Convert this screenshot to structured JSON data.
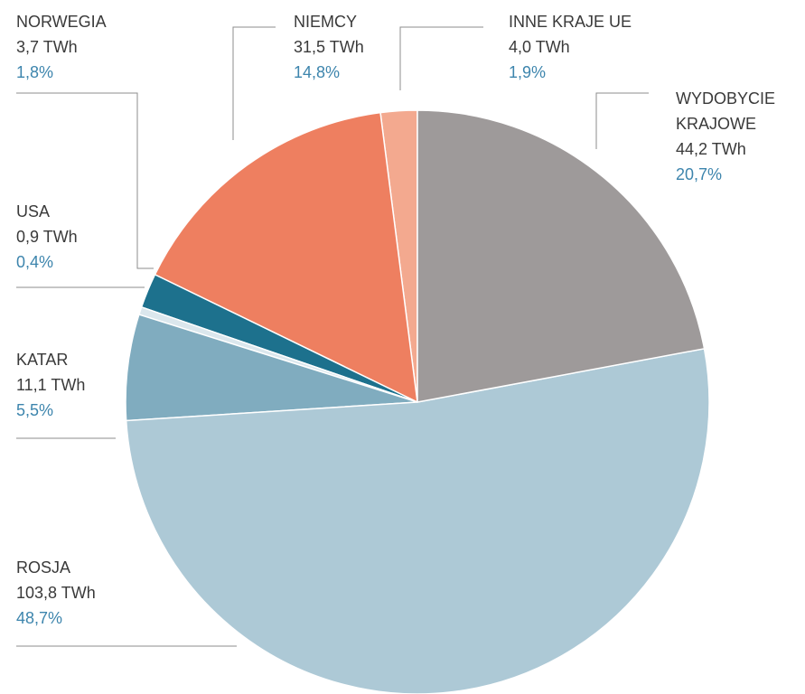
{
  "chart_data": {
    "type": "pie",
    "categories": [
      "WYDOBYCIE KRAJOWE",
      "ROSJA",
      "KATAR",
      "USA",
      "NORWEGIA",
      "NIEMCY",
      "INNE KRAJE UE"
    ],
    "values": [
      20.7,
      48.7,
      5.5,
      0.4,
      1.8,
      14.8,
      1.9
    ],
    "value_labels": [
      "20,7%",
      "48,7%",
      "5,5%",
      "0,4%",
      "1,8%",
      "14,8%",
      "1,9%"
    ],
    "energy_labels": [
      "44,2 TWh",
      "103,8 TWh",
      "11,1 TWh",
      "0,9 TWh",
      "3,7 TWh",
      "31,5 TWh",
      "4,0 TWh"
    ],
    "colors": [
      "#9e9a9a",
      "#adc9d6",
      "#80acbf",
      "#dbe7ed",
      "#1d718d",
      "#ee7f60",
      "#f3a98f"
    ]
  }
}
